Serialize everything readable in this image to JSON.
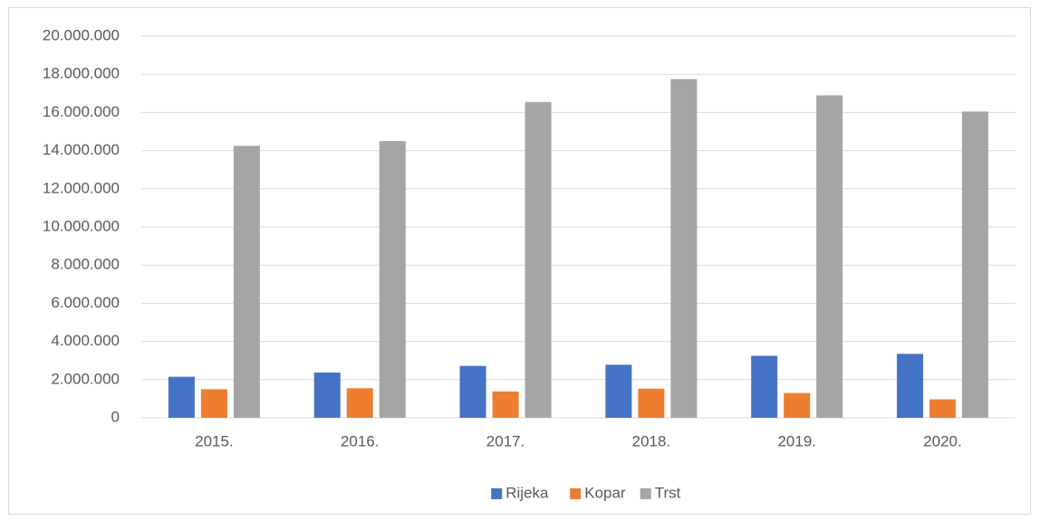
{
  "chart_data": {
    "type": "bar",
    "categories": [
      "2015.",
      "2016.",
      "2017.",
      "2018.",
      "2019.",
      "2020."
    ],
    "series": [
      {
        "name": "Rijeka",
        "color": "#4472c4",
        "values": [
          2150000,
          2370000,
          2720000,
          2780000,
          3250000,
          3350000
        ]
      },
      {
        "name": "Kopar",
        "color": "#ed7d31",
        "values": [
          1500000,
          1550000,
          1380000,
          1530000,
          1300000,
          970000
        ]
      },
      {
        "name": "Trst",
        "color": "#a5a5a5",
        "values": [
          14250000,
          14500000,
          16550000,
          17750000,
          16900000,
          16050000
        ]
      }
    ],
    "ylim": [
      0,
      20000000
    ],
    "yticks": [
      0,
      {
        "value": 2000000,
        "label": "2.000.000"
      },
      {
        "value": 4000000,
        "label": "4.000.000"
      },
      {
        "value": 6000000,
        "label": "6.000.000"
      },
      {
        "value": 8000000,
        "label": "8.000.000"
      },
      {
        "value": 10000000,
        "label": "10.000.000"
      },
      {
        "value": 12000000,
        "label": "12.000.000"
      },
      {
        "value": 14000000,
        "label": "14.000.000"
      },
      {
        "value": 16000000,
        "label": "16.000.000"
      },
      {
        "value": 18000000,
        "label": "18.000.000"
      },
      {
        "value": 20000000,
        "label": "20.000.000"
      }
    ],
    "grid": true,
    "legend": "bottom"
  }
}
